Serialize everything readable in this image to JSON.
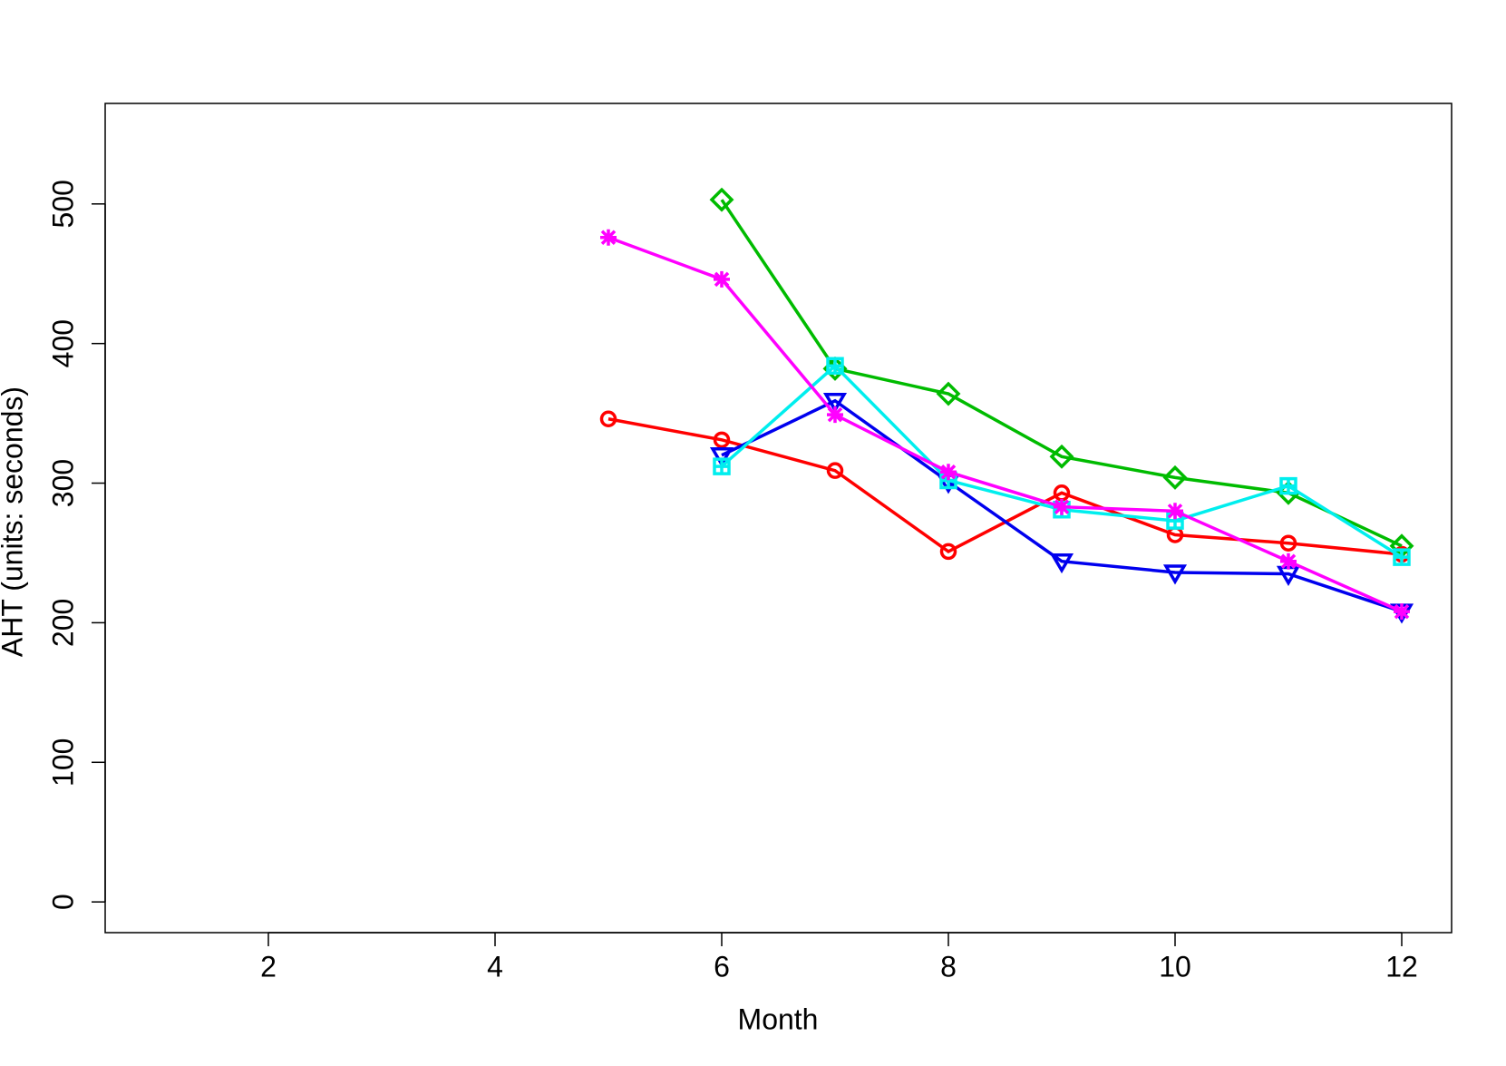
{
  "chart_data": {
    "type": "line",
    "x_label": "Month",
    "y_label": "AHT (units: seconds)",
    "x": [
      5,
      6,
      7,
      8,
      9,
      10,
      11,
      12
    ],
    "series": [
      {
        "color": "#ff0000",
        "marker": "circle",
        "values": [
          346,
          331,
          309,
          251,
          293,
          263,
          257,
          249
        ]
      },
      {
        "color": "#00bb00",
        "marker": "diamond",
        "values": [
          null,
          503,
          382,
          364,
          319,
          304,
          293,
          255
        ]
      },
      {
        "color": "#0000ee",
        "marker": "triangle-down",
        "values": [
          null,
          320,
          359,
          301,
          244,
          236,
          235,
          208
        ]
      },
      {
        "color": "#00eeee",
        "marker": "square",
        "values": [
          null,
          312,
          384,
          302,
          281,
          273,
          298,
          247
        ]
      },
      {
        "color": "#ff00ff",
        "marker": "asterisk",
        "values": [
          476,
          446,
          349,
          308,
          283,
          280,
          244,
          208
        ]
      }
    ],
    "xlim": [
      0.56,
      12.44
    ],
    "xticks": [
      2,
      4,
      6,
      8,
      10,
      12
    ],
    "ylim": [
      -22,
      572
    ],
    "yticks": [
      0,
      100,
      200,
      300,
      400,
      500
    ]
  }
}
